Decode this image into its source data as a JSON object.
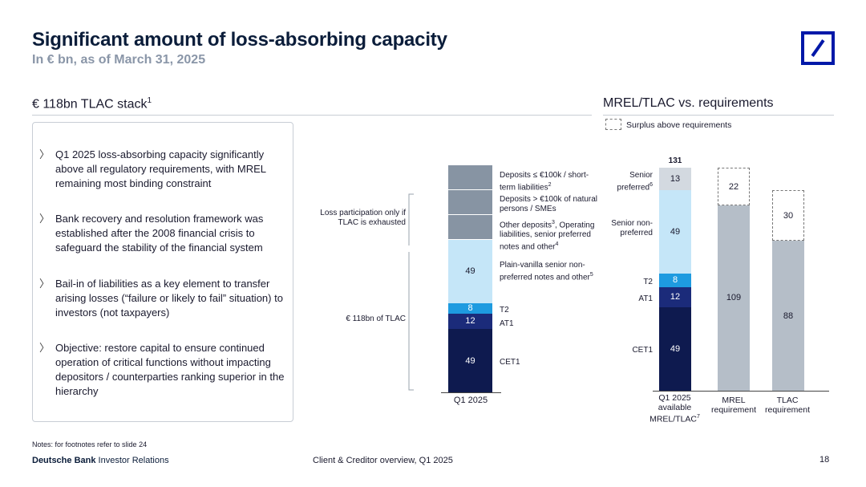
{
  "header": {
    "title": "Significant amount of loss-absorbing capacity",
    "subtitle": "In € bn, as of March 31, 2025"
  },
  "left_section": {
    "title": "€ 118bn TLAC stack",
    "title_sup": "1",
    "bullets": [
      "Q1 2025 loss-absorbing capacity significantly above all regulatory requirements, with MREL remaining most binding constraint",
      "Bank recovery and resolution framework was established after the 2008 financial crisis to safeguard the stability of the financial system",
      "Bail-in of liabilities as a key element to transfer arising losses (“failure or likely to fail” situation) to investors (not taxpayers)",
      "Objective: restore capital to ensure continued operation of critical functions without impacting depositors / counterparties ranking superior in the hierarchy"
    ]
  },
  "middle_chart": {
    "bracket_top_label": "Loss participation only if TLAC is exhausted",
    "bracket_bottom_label": "€ 118bn of TLAC",
    "x_label": "Q1 2025",
    "right_labels": {
      "deposits_small": "Deposits ≤ €100k / short-term liabilities",
      "deposits_small_sup": "2",
      "deposits_large": "Deposits > €100k of natural persons / SMEs",
      "other_deposits": "Other deposits",
      "other_deposits_sup": "3",
      "other_deposits_rest": ", Operating liabilities, senior preferred notes and other",
      "other_deposits_sup2": "4",
      "plain_vanilla": "Plain-vanilla senior non-preferred notes and other",
      "plain_vanilla_sup": "5",
      "t2": "T2",
      "at1": "AT1",
      "cet1": "CET1"
    }
  },
  "right_section": {
    "title": "MREL/TLAC vs. requirements",
    "legend": "Surplus above requirements"
  },
  "chart_data": [
    {
      "type": "bar",
      "stacked": true,
      "title": "€ 118bn TLAC stack",
      "categories": [
        "Q1 2025"
      ],
      "series": [
        {
          "name": "CET1",
          "values": [
            49
          ],
          "color": "#0e1a4f"
        },
        {
          "name": "AT1",
          "values": [
            12
          ],
          "color": "#1b2b7a"
        },
        {
          "name": "T2",
          "values": [
            8
          ],
          "color": "#1e9be0"
        },
        {
          "name": "Plain-vanilla senior non-preferred notes and other",
          "values": [
            49
          ],
          "color": "#c5e6f8"
        }
      ],
      "labels": [
        "49",
        "12",
        "8",
        "49"
      ]
    },
    {
      "type": "bar",
      "stacked": true,
      "title": "MREL/TLAC vs. requirements",
      "categories": [
        "Q1 2025 available MREL/TLAC",
        "MREL requirement",
        "TLAC requirement"
      ],
      "category_sup": [
        "7",
        "",
        ""
      ],
      "total_label": "131",
      "series": [
        {
          "name": "CET1",
          "values": [
            49,
            0,
            0
          ],
          "color": "#0e1a4f"
        },
        {
          "name": "AT1",
          "values": [
            12,
            0,
            0
          ],
          "color": "#1b2b7a"
        },
        {
          "name": "T2",
          "values": [
            8,
            0,
            0
          ],
          "color": "#1e9be0"
        },
        {
          "name": "Senior non-preferred",
          "values": [
            49,
            0,
            0
          ],
          "color": "#c5e6f8"
        },
        {
          "name": "Senior preferred",
          "values": [
            13,
            0,
            0
          ],
          "color": "#d3d9e0"
        },
        {
          "name": "Requirement",
          "values": [
            0,
            109,
            88
          ],
          "color": "#b5bec8"
        },
        {
          "name": "Surplus above requirements",
          "values": [
            0,
            22,
            30
          ],
          "color": "#ffffff"
        }
      ],
      "left_labels": [
        "Senior preferred",
        "Senior non-preferred",
        "T2",
        "AT1",
        "CET1"
      ],
      "left_label_sup": "6"
    }
  ],
  "footer": {
    "notes": "Notes: for footnotes refer to slide 24",
    "brand_bold": "Deutsche Bank",
    "brand_rest": " Investor Relations",
    "center": "Client & Creditor overview, Q1 2025",
    "page": "18"
  }
}
